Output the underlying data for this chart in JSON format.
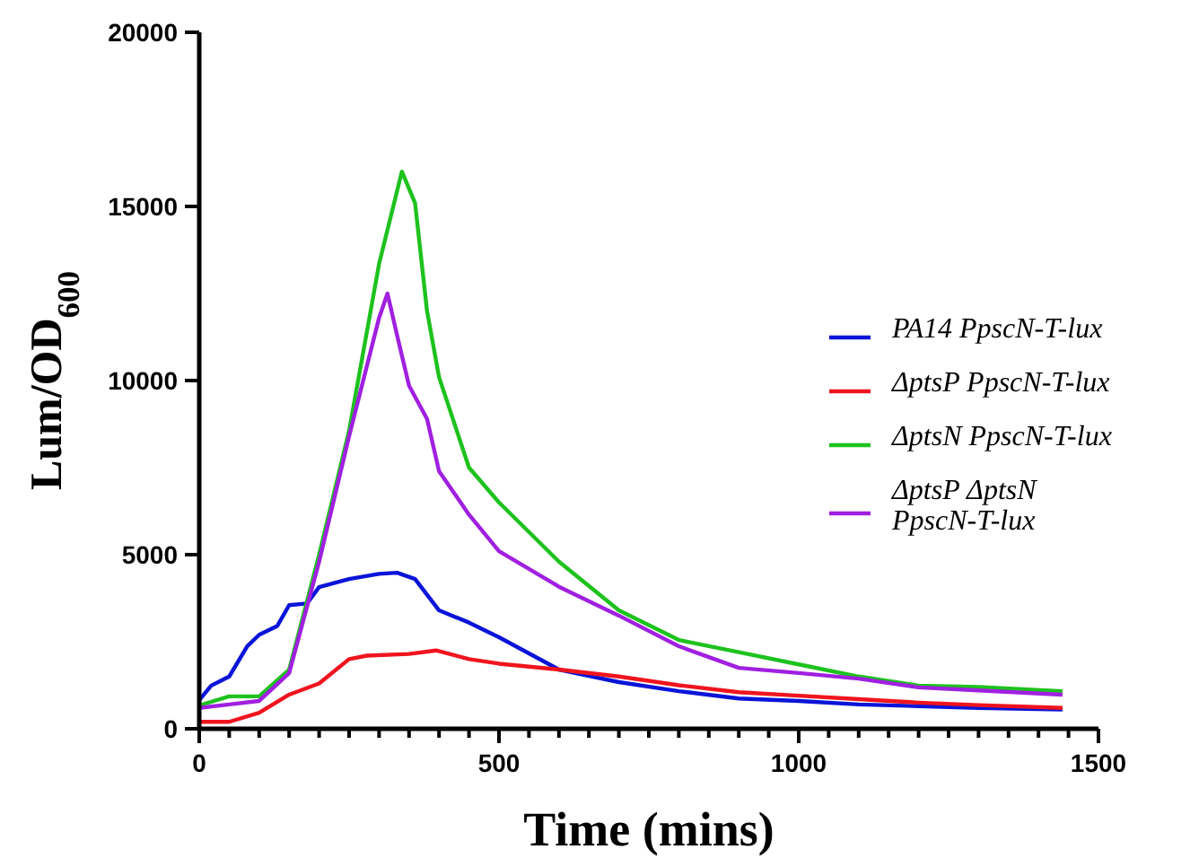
{
  "chart_data": {
    "type": "line",
    "xlabel": "Time (mins)",
    "ylabel": "Lum/OD$_{600}$",
    "xlim": [
      0,
      1500
    ],
    "ylim": [
      0,
      20000
    ],
    "xticks": [
      0,
      {
        "value": 50,
        "label": null
      },
      {
        "value": 100,
        "label": null
      },
      {
        "value": 150,
        "label": null
      },
      {
        "value": 200,
        "label": null
      },
      {
        "value": 250,
        "label": null
      },
      {
        "value": 300,
        "label": null
      },
      {
        "value": 350,
        "label": null
      },
      {
        "value": 400,
        "label": null
      },
      {
        "value": 450,
        "label": null
      },
      500,
      {
        "value": 550,
        "label": null
      },
      {
        "value": 600,
        "label": null
      },
      {
        "value": 650,
        "label": null
      },
      {
        "value": 700,
        "label": null
      },
      {
        "value": 750,
        "label": null
      },
      {
        "value": 800,
        "label": null
      },
      {
        "value": 850,
        "label": null
      },
      {
        "value": 900,
        "label": null
      },
      {
        "value": 950,
        "label": null
      },
      1000,
      {
        "value": 1050,
        "label": null
      },
      {
        "value": 1100,
        "label": null
      },
      {
        "value": 1150,
        "label": null
      },
      {
        "value": 1200,
        "label": null
      },
      {
        "value": 1250,
        "label": null
      },
      {
        "value": 1300,
        "label": null
      },
      {
        "value": 1350,
        "label": null
      },
      {
        "value": 1400,
        "label": null
      },
      {
        "value": 1450,
        "label": null
      },
      1500
    ],
    "yticks": [
      0,
      5000,
      10000,
      15000,
      20000
    ],
    "grid": false,
    "legend": "right",
    "marker": "none",
    "line_style": "solid",
    "series": [
      {
        "name": "PA14 PpscN-T-lux",
        "color": "#0a14d8",
        "x": [
          0,
          20,
          50,
          80,
          100,
          130,
          150,
          180,
          200,
          250,
          300,
          330,
          360,
          400,
          450,
          500,
          600,
          700,
          800,
          900,
          1000,
          1100,
          1200,
          1300,
          1440
        ],
        "values": [
          820,
          1240,
          1500,
          2370,
          2700,
          2950,
          3550,
          3600,
          4070,
          4300,
          4450,
          4480,
          4300,
          3400,
          3050,
          2630,
          1700,
          1340,
          1080,
          870,
          800,
          700,
          650,
          600,
          550
        ]
      },
      {
        "name": "ΔptsP PpscN-T-lux",
        "color": "#f0141e",
        "x": [
          0,
          50,
          100,
          150,
          200,
          250,
          280,
          350,
          395,
          450,
          500,
          600,
          700,
          800,
          900,
          1000,
          1100,
          1200,
          1300,
          1440
        ],
        "values": [
          200,
          200,
          460,
          980,
          1300,
          2000,
          2100,
          2150,
          2250,
          2000,
          1870,
          1700,
          1500,
          1250,
          1050,
          950,
          850,
          750,
          680,
          600
        ]
      },
      {
        "name": "ΔptsN PpscN-T-lux",
        "color": "#1ec21e",
        "x": [
          0,
          50,
          100,
          150,
          200,
          250,
          300,
          338,
          360,
          380,
          400,
          450,
          500,
          600,
          700,
          800,
          900,
          1000,
          1100,
          1200,
          1300,
          1440
        ],
        "values": [
          670,
          930,
          930,
          1700,
          5000,
          8560,
          13350,
          16000,
          15100,
          12000,
          10100,
          7500,
          6500,
          4800,
          3400,
          2550,
          2200,
          1850,
          1500,
          1240,
          1200,
          1080
        ]
      },
      {
        "name": "ΔptsP ΔptsN PpscN-T-lux",
        "color": "#a020e0",
        "x": [
          0,
          50,
          100,
          150,
          200,
          250,
          300,
          314,
          330,
          350,
          380,
          400,
          450,
          500,
          600,
          700,
          800,
          900,
          1000,
          1100,
          1200,
          1300,
          1440
        ],
        "values": [
          600,
          700,
          800,
          1600,
          4800,
          8400,
          11800,
          12500,
          11300,
          9850,
          8900,
          7400,
          6150,
          5100,
          4080,
          3250,
          2370,
          1750,
          1600,
          1440,
          1190,
          1100,
          980
        ]
      }
    ]
  }
}
